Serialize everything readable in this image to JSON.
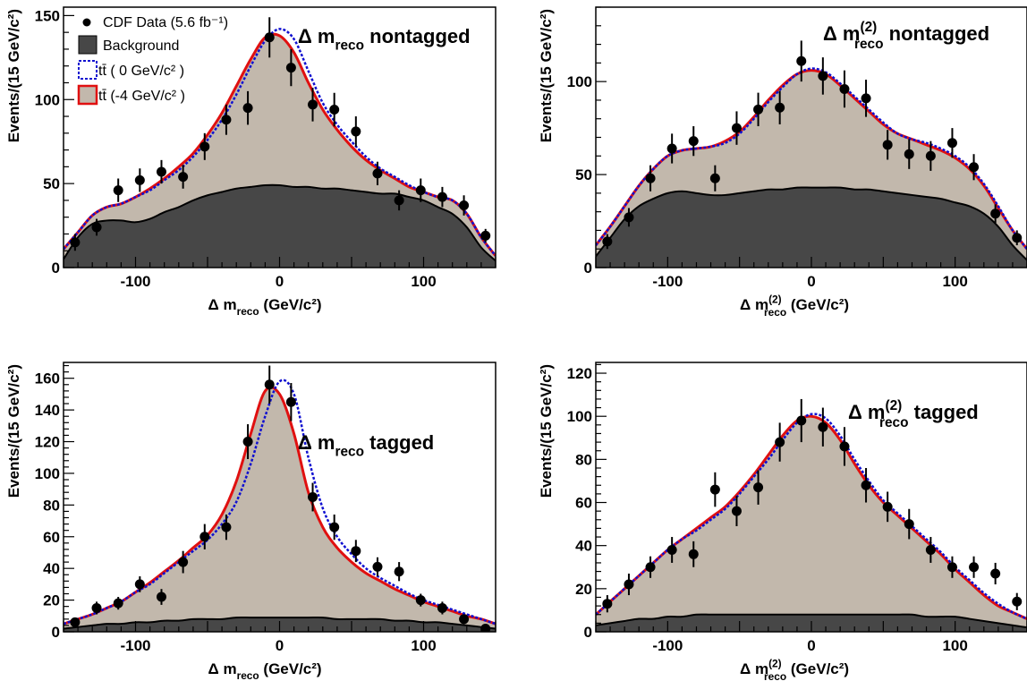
{
  "colors": {
    "data": "#000000",
    "background": "#474747",
    "signal_fill": "#c2b8ac",
    "signal_0": "#1010d0",
    "signal_m4": "#e01010"
  },
  "legend": {
    "data": "CDF Data (5.6 fb⁻¹)",
    "background": "Background",
    "signal_0": "tt̄ ( 0 GeV/c² )",
    "signal_m4": "tt̄ (-4 GeV/c² )"
  },
  "chart_data": [
    {
      "type": "scatter",
      "title": "Δ m_reco nontagged",
      "xlabel": "Δ m_reco (GeV/c²)",
      "ylabel": "Events/(15 GeV/c²)",
      "xlim": [
        -150,
        150
      ],
      "ylim": [
        0,
        155
      ],
      "xticks": [
        -100,
        0,
        100
      ],
      "yticks": [
        0,
        50,
        100,
        150
      ],
      "data_x": [
        -142,
        -127,
        -112,
        -97,
        -82,
        -67,
        -52,
        -37,
        -22,
        -7,
        8,
        23,
        38,
        53,
        68,
        83,
        98,
        113,
        128,
        143
      ],
      "data_y": [
        15,
        24,
        46,
        52,
        57,
        54,
        72,
        88,
        95,
        137,
        119,
        97,
        94,
        81,
        56,
        40,
        46,
        42,
        37,
        19
      ],
      "data_err": [
        5,
        5,
        7,
        7,
        7,
        7,
        8,
        9,
        10,
        12,
        11,
        10,
        10,
        9,
        7,
        6,
        7,
        6,
        6,
        4
      ],
      "curve_x": [
        -150,
        -140,
        -130,
        -120,
        -110,
        -100,
        -90,
        -80,
        -70,
        -60,
        -50,
        -40,
        -30,
        -20,
        -10,
        0,
        10,
        20,
        30,
        40,
        50,
        60,
        70,
        80,
        90,
        100,
        110,
        120,
        130,
        140,
        150
      ],
      "background_y": [
        5,
        18,
        26,
        28,
        28,
        27,
        29,
        33,
        36,
        40,
        43,
        45,
        47,
        48,
        49,
        49,
        48,
        48,
        47,
        47,
        46,
        45,
        44,
        44,
        42,
        40,
        36,
        32,
        24,
        12,
        4
      ],
      "signal_0_y": [
        11,
        21,
        31,
        36,
        38,
        42,
        46,
        52,
        58,
        66,
        76,
        88,
        103,
        120,
        135,
        142,
        136,
        117,
        98,
        85,
        75,
        66,
        59,
        54,
        49,
        45,
        42,
        40,
        32,
        18,
        7
      ],
      "signal_m4_y": [
        11,
        21,
        31,
        36,
        38,
        42,
        47,
        53,
        60,
        68,
        79,
        92,
        108,
        124,
        137,
        138,
        128,
        110,
        94,
        82,
        72,
        64,
        58,
        53,
        48,
        45,
        42,
        40,
        32,
        18,
        7
      ]
    },
    {
      "type": "scatter",
      "title": "Δ m(2)_reco nontagged",
      "xlabel": "Δ m(2)_reco (GeV/c²)",
      "ylabel": "Events/(15 GeV/c²)",
      "xlim": [
        -150,
        150
      ],
      "ylim": [
        0,
        140
      ],
      "xticks": [
        -100,
        0,
        100
      ],
      "yticks": [
        0,
        50,
        100
      ],
      "data_x": [
        -142,
        -127,
        -112,
        -97,
        -82,
        -67,
        -52,
        -37,
        -22,
        -7,
        8,
        23,
        38,
        53,
        68,
        83,
        98,
        113,
        128,
        143
      ],
      "data_y": [
        14,
        27,
        48,
        64,
        68,
        48,
        75,
        85,
        86,
        111,
        103,
        96,
        91,
        66,
        61,
        60,
        67,
        54,
        29,
        16
      ],
      "data_err": [
        4,
        5,
        7,
        8,
        8,
        7,
        9,
        9,
        9,
        11,
        10,
        10,
        10,
        8,
        8,
        8,
        8,
        7,
        5,
        4
      ],
      "curve_x": [
        -150,
        -140,
        -130,
        -120,
        -110,
        -100,
        -90,
        -80,
        -70,
        -60,
        -50,
        -40,
        -30,
        -20,
        -10,
        0,
        10,
        20,
        30,
        40,
        50,
        60,
        70,
        80,
        90,
        100,
        110,
        120,
        130,
        140,
        150
      ],
      "background_y": [
        6,
        16,
        26,
        33,
        37,
        40,
        41,
        40,
        39,
        39,
        40,
        41,
        42,
        42,
        43,
        43,
        43,
        43,
        42,
        42,
        41,
        40,
        39,
        38,
        37,
        35,
        33,
        29,
        22,
        12,
        4
      ],
      "signal_0_y": [
        12,
        22,
        33,
        44,
        53,
        60,
        63,
        64,
        65,
        67,
        72,
        80,
        89,
        97,
        104,
        107,
        105,
        99,
        92,
        85,
        78,
        72,
        69,
        67,
        64,
        60,
        54,
        45,
        33,
        20,
        10
      ],
      "signal_m4_y": [
        12,
        22,
        33,
        44,
        53,
        60,
        63,
        64,
        65,
        68,
        73,
        81,
        90,
        98,
        104,
        106,
        104,
        98,
        91,
        84,
        77,
        72,
        69,
        66,
        63,
        59,
        53,
        44,
        32,
        20,
        10
      ]
    },
    {
      "type": "scatter",
      "title": "Δ m_reco tagged",
      "xlabel": "Δ m_reco (GeV/c²)",
      "ylabel": "Events/(15 GeV/c²)",
      "xlim": [
        -150,
        150
      ],
      "ylim": [
        0,
        170
      ],
      "xticks": [
        -100,
        0,
        100
      ],
      "yticks": [
        0,
        20,
        40,
        60,
        80,
        100,
        120,
        140,
        160
      ],
      "data_x": [
        -142,
        -127,
        -112,
        -97,
        -82,
        -67,
        -52,
        -37,
        -22,
        -7,
        8,
        23,
        38,
        53,
        68,
        83,
        98,
        113,
        128,
        143
      ],
      "data_y": [
        6,
        15,
        18,
        30,
        22,
        44,
        60,
        66,
        120,
        156,
        145,
        85,
        66,
        51,
        41,
        38,
        20,
        15,
        8,
        2
      ],
      "data_err": [
        3,
        4,
        4,
        5,
        5,
        7,
        8,
        8,
        11,
        12,
        12,
        9,
        8,
        7,
        6,
        6,
        4,
        4,
        3,
        2
      ],
      "curve_x": [
        -150,
        -140,
        -130,
        -120,
        -110,
        -100,
        -90,
        -80,
        -70,
        -60,
        -50,
        -40,
        -30,
        -20,
        -10,
        0,
        10,
        20,
        30,
        40,
        50,
        60,
        70,
        80,
        90,
        100,
        110,
        120,
        130,
        140,
        150
      ],
      "background_y": [
        2,
        3,
        4,
        5,
        5,
        6,
        6,
        7,
        7,
        8,
        8,
        8,
        9,
        9,
        9,
        9,
        9,
        9,
        9,
        8,
        8,
        8,
        8,
        7,
        7,
        6,
        6,
        5,
        4,
        3,
        2
      ],
      "signal_0_y": [
        5,
        8,
        11,
        15,
        19,
        25,
        30,
        37,
        44,
        51,
        58,
        68,
        82,
        106,
        136,
        158,
        150,
        110,
        78,
        60,
        49,
        40,
        34,
        29,
        24,
        20,
        17,
        14,
        11,
        8,
        5
      ],
      "signal_m4_y": [
        5,
        8,
        11,
        15,
        19,
        25,
        31,
        38,
        45,
        53,
        61,
        74,
        95,
        125,
        152,
        150,
        125,
        88,
        66,
        53,
        44,
        37,
        32,
        27,
        23,
        19,
        16,
        13,
        10,
        8,
        5
      ]
    },
    {
      "type": "scatter",
      "title": "Δ m(2)_reco tagged",
      "xlabel": "Δ m(2)_reco (GeV/c²)",
      "ylabel": "Events/(15 GeV/c²)",
      "xlim": [
        -150,
        150
      ],
      "ylim": [
        0,
        125
      ],
      "xticks": [
        -100,
        0,
        100
      ],
      "yticks": [
        0,
        20,
        40,
        60,
        80,
        100,
        120
      ],
      "data_x": [
        -142,
        -127,
        -112,
        -97,
        -82,
        -67,
        -52,
        -37,
        -22,
        -7,
        8,
        23,
        38,
        53,
        68,
        83,
        98,
        113,
        128,
        143
      ],
      "data_y": [
        13,
        22,
        30,
        38,
        36,
        66,
        56,
        67,
        88,
        98,
        95,
        86,
        68,
        58,
        50,
        38,
        30,
        30,
        27,
        14
      ],
      "data_err": [
        4,
        5,
        5,
        6,
        6,
        8,
        7,
        8,
        9,
        10,
        9,
        9,
        8,
        7,
        7,
        6,
        5,
        5,
        5,
        4
      ],
      "curve_x": [
        -150,
        -140,
        -130,
        -120,
        -110,
        -100,
        -90,
        -80,
        -70,
        -60,
        -50,
        -40,
        -30,
        -20,
        -10,
        0,
        10,
        20,
        30,
        40,
        50,
        60,
        70,
        80,
        90,
        100,
        110,
        120,
        130,
        140,
        150
      ],
      "background_y": [
        3,
        4,
        5,
        6,
        6,
        7,
        7,
        8,
        8,
        8,
        8,
        8,
        8,
        8,
        8,
        8,
        8,
        8,
        8,
        8,
        8,
        8,
        8,
        7,
        7,
        7,
        6,
        5,
        4,
        3,
        2
      ],
      "signal_0_y": [
        8,
        14,
        20,
        26,
        32,
        38,
        43,
        47,
        52,
        57,
        64,
        72,
        80,
        89,
        97,
        101,
        99,
        91,
        80,
        70,
        61,
        55,
        49,
        43,
        37,
        30,
        24,
        18,
        13,
        9,
        6
      ],
      "signal_m4_y": [
        8,
        14,
        20,
        26,
        32,
        38,
        43,
        48,
        53,
        58,
        65,
        73,
        82,
        91,
        98,
        100,
        97,
        89,
        78,
        68,
        60,
        54,
        48,
        42,
        36,
        29,
        23,
        17,
        12,
        9,
        6
      ]
    }
  ]
}
